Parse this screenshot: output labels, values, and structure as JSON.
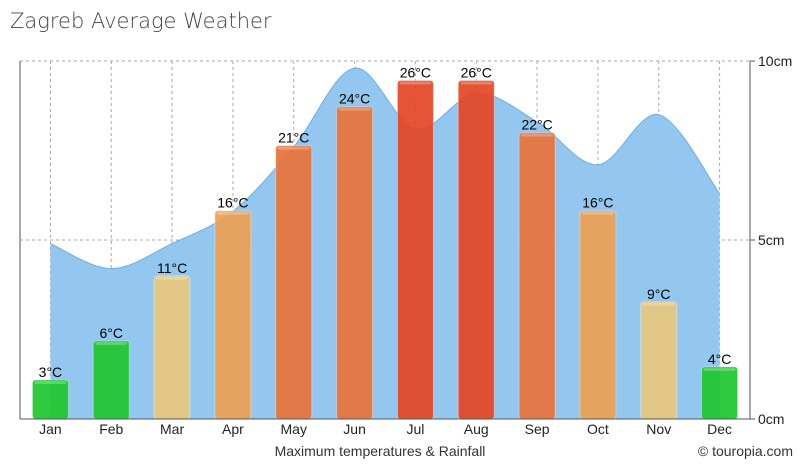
{
  "chart_data": {
    "type": "bar",
    "title": "Zagreb Average Weather",
    "xlabel": "Maximum temperatures & Rainfall",
    "categories": [
      "Jan",
      "Feb",
      "Mar",
      "Apr",
      "May",
      "Jun",
      "Jul",
      "Aug",
      "Sep",
      "Oct",
      "Nov",
      "Dec"
    ],
    "series": [
      {
        "values": [
          3,
          6,
          11,
          16,
          21,
          24,
          26,
          26,
          22,
          16,
          9,
          4
        ],
        "value_labels": [
          "3°C",
          "6°C",
          "11°C",
          "16°C",
          "21°C",
          "24°C",
          "26°C",
          "26°C",
          "22°C",
          "16°C",
          "9°C",
          "4°C"
        ],
        "bar_colors": [
          "#1fc62f",
          "#1fc62f",
          "#e6c77e",
          "#eba054",
          "#e7733b",
          "#e7733b",
          "#e34725",
          "#e34725",
          "#e7733b",
          "#eba054",
          "#e6c77e",
          "#1fc62f"
        ]
      },
      {
        "type": "area",
        "values": [
          4.9,
          4.2,
          4.9,
          5.8,
          7.6,
          9.8,
          8.1,
          9.1,
          8.3,
          7.1,
          8.5,
          6.3
        ]
      }
    ],
    "temp_max": 27.5,
    "y2_ticks": [
      "10cm",
      "5cm",
      "0cm"
    ],
    "ylim_right": [
      0,
      10
    ],
    "grid": true,
    "area_color": "#8ec4ee",
    "credit": "© touropia.com"
  }
}
